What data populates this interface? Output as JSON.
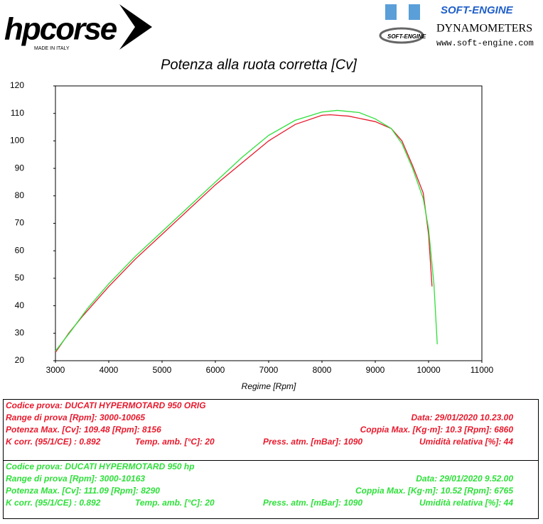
{
  "header": {
    "brand": "hpcorse",
    "brand_tagline": "MADE IN ITALY",
    "dyno_brand": "SOFT-ENGINE",
    "dyno_logo_text": "SOFT-ENGINE",
    "dyno_subtitle": "DYNAMOMETERS",
    "dyno_url": "www.soft-engine.com"
  },
  "chart_data": {
    "type": "line",
    "title": "Potenza alla ruota corretta [Cv]",
    "x_label": "Regime [Rpm]",
    "xlim": [
      3000,
      11000
    ],
    "xticks": [
      3000,
      4000,
      5000,
      6000,
      7000,
      8000,
      9000,
      10000,
      11000
    ],
    "ylim": [
      20,
      120
    ],
    "yticks": [
      20,
      30,
      40,
      50,
      60,
      70,
      80,
      90,
      100,
      110,
      120
    ],
    "grid": false,
    "series": [
      {
        "color": "#e8192c",
        "x": [
          3000,
          3250,
          3500,
          4000,
          4500,
          5000,
          5500,
          6000,
          6500,
          7000,
          7500,
          8000,
          8156,
          8500,
          9000,
          9300,
          9500,
          9700,
          9900,
          10000,
          10065
        ],
        "values": [
          23,
          30,
          36,
          47,
          57,
          66,
          75,
          84,
          92,
          100,
          106,
          109.3,
          109.5,
          109,
          107,
          104.5,
          100,
          91,
          81,
          66,
          47
        ]
      },
      {
        "color": "#2ee03a",
        "x": [
          3000,
          3300,
          3600,
          4000,
          4500,
          5000,
          5500,
          6000,
          6500,
          7000,
          7500,
          8000,
          8290,
          8700,
          9000,
          9300,
          9500,
          9700,
          9900,
          10000,
          10100,
          10163
        ],
        "values": [
          23.5,
          31,
          39,
          48,
          58,
          67,
          76,
          85,
          94,
          102,
          107.5,
          110.5,
          111.1,
          110.3,
          108,
          104.5,
          99,
          90,
          79,
          68,
          48,
          26
        ]
      }
    ]
  },
  "test_panels": [
    {
      "color": "#e8192c",
      "code": "Codice prova: DUCATI HYPERMOTARD 950 ORIG",
      "range": "Range di prova [Rpm]: 3000-10065",
      "date": "Data: 29/01/2020  10.23.00",
      "power_max": "Potenza Max. [Cv]: 109.48  [Rpm]: 8156",
      "torque_max": "Coppia Max. [Kg·m]: 10.3  [Rpm]: 6860",
      "k_corr": "K corr. (95/1/CE) : 0.892",
      "temp": "Temp. amb. [°C]: 20",
      "pressure": "Press. atm. [mBar]: 1090",
      "humidity": "Umidità relativa [%]: 44"
    },
    {
      "color": "#2ee03a",
      "code": "Codice prova: DUCATI HYPERMOTARD 950 hp",
      "range": "Range di prova [Rpm]: 3000-10163",
      "date": "Data: 29/01/2020  9.52.00",
      "power_max": "Potenza Max. [Cv]: 111.09  [Rpm]: 8290",
      "torque_max": "Coppia Max. [Kg·m]: 10.52  [Rpm]: 6765",
      "k_corr": "K corr. (95/1/CE) : 0.892",
      "temp": "Temp. amb. [°C]: 20",
      "pressure": "Press. atm. [mBar]: 1090",
      "humidity": "Umidità relativa [%]: 44"
    }
  ]
}
